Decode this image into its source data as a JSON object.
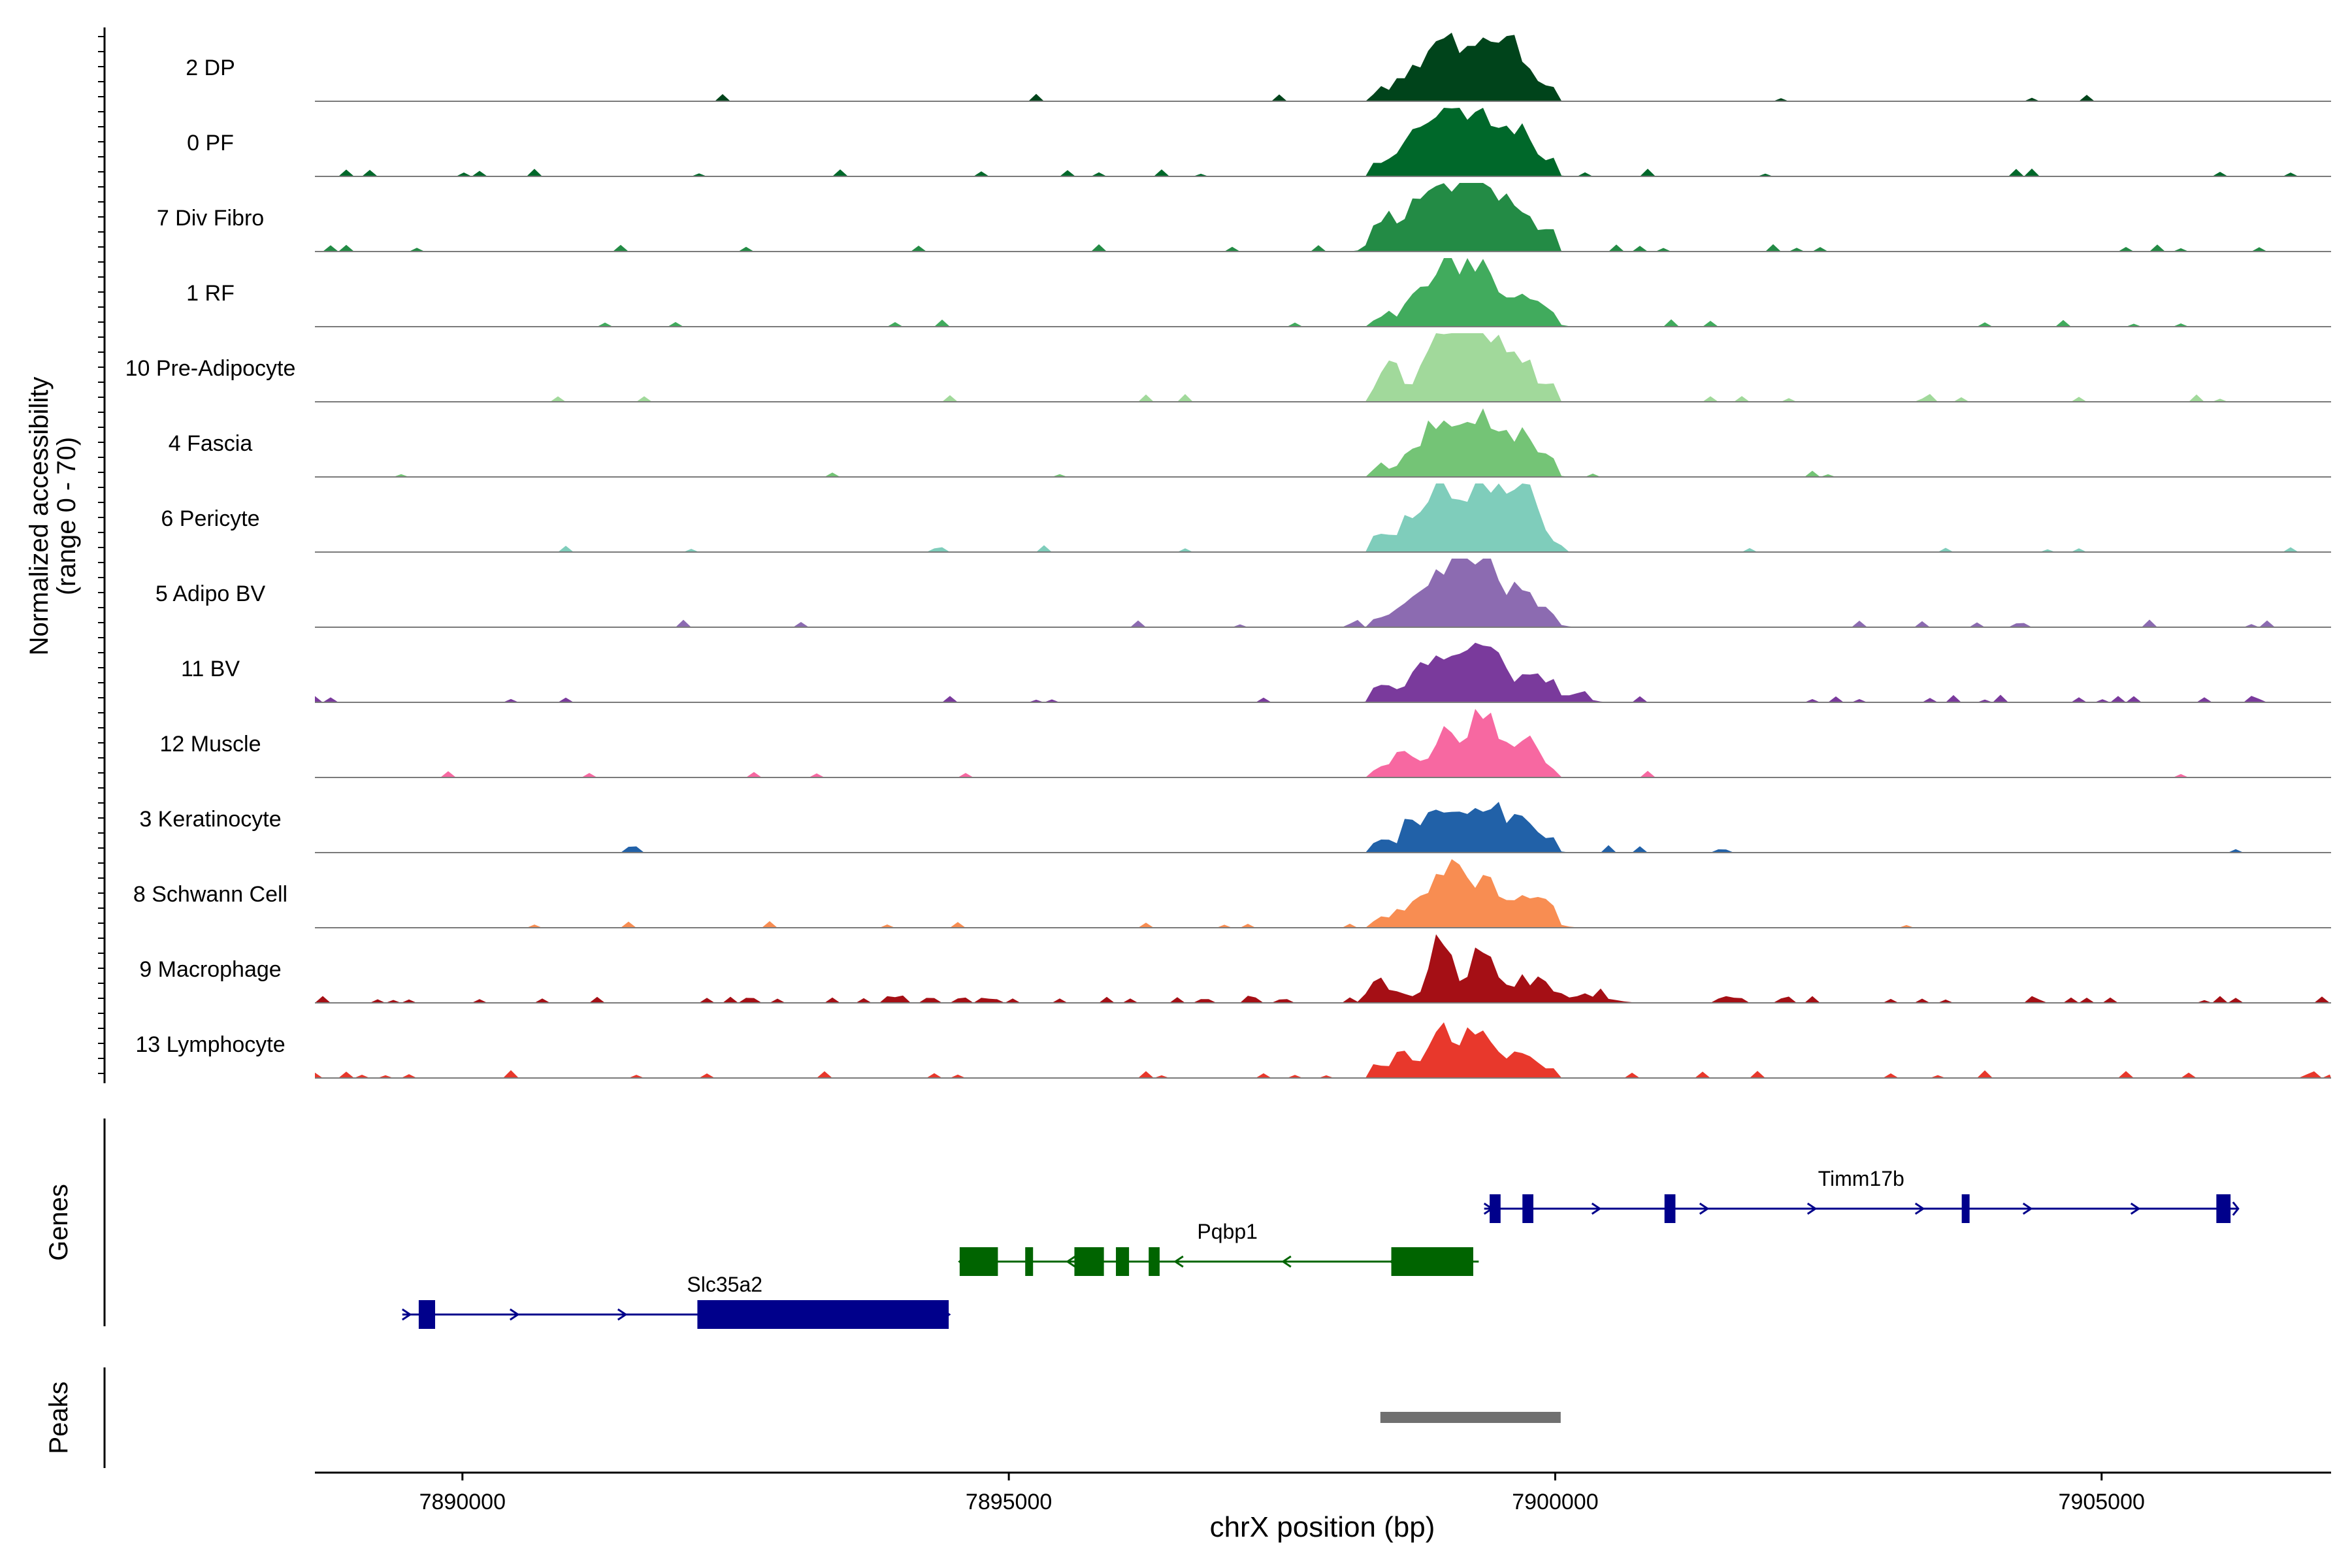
{
  "chart_data": {
    "type": "coverage-track",
    "region": {
      "chrom": "chrX",
      "start": 7888650,
      "end": 7907100
    },
    "ylabel_line1": "Normalized accessibility",
    "ylabel_line2": "(range 0 - 70)",
    "y_range": [
      0,
      70
    ],
    "tracks": [
      {
        "name": "2 DP",
        "color": "#00441b",
        "peaks": [
          {
            "pos": 7898700,
            "h": 0.25,
            "w": 120
          },
          {
            "pos": 7898950,
            "h": 0.78,
            "w": 130
          },
          {
            "pos": 7899300,
            "h": 0.88,
            "w": 160
          },
          {
            "pos": 7899650,
            "h": 0.58,
            "w": 140
          }
        ],
        "shoulder": 0.15,
        "noise": 0.03
      },
      {
        "name": "0 PF",
        "color": "#00682a",
        "peaks": [
          {
            "pos": 7898700,
            "h": 0.28,
            "w": 120
          },
          {
            "pos": 7898950,
            "h": 0.82,
            "w": 130
          },
          {
            "pos": 7899300,
            "h": 0.86,
            "w": 160
          },
          {
            "pos": 7899680,
            "h": 0.55,
            "w": 140
          }
        ],
        "shoulder": 0.17,
        "noise": 0.05
      },
      {
        "name": "7 Div Fibro",
        "color": "#238b45",
        "peaks": [
          {
            "pos": 7898400,
            "h": 0.25,
            "w": 90
          },
          {
            "pos": 7898700,
            "h": 0.42,
            "w": 120
          },
          {
            "pos": 7898950,
            "h": 0.68,
            "w": 130
          },
          {
            "pos": 7899300,
            "h": 1.0,
            "w": 150
          },
          {
            "pos": 7899650,
            "h": 0.45,
            "w": 140
          }
        ],
        "shoulder": 0.2,
        "noise": 0.1
      },
      {
        "name": "1 RF",
        "color": "#41ab5d",
        "peaks": [
          {
            "pos": 7898700,
            "h": 0.2,
            "w": 120
          },
          {
            "pos": 7898980,
            "h": 0.75,
            "w": 130
          },
          {
            "pos": 7899320,
            "h": 0.72,
            "w": 160
          },
          {
            "pos": 7899750,
            "h": 0.3,
            "w": 140
          }
        ],
        "shoulder": 0.15,
        "noise": 0.03
      },
      {
        "name": "10 Pre-Adipocyte",
        "color": "#a1d99b",
        "peaks": [
          {
            "pos": 7898500,
            "h": 0.25,
            "w": 80
          },
          {
            "pos": 7898950,
            "h": 0.9,
            "w": 110
          },
          {
            "pos": 7899300,
            "h": 1.0,
            "w": 140
          },
          {
            "pos": 7899650,
            "h": 0.35,
            "w": 140
          }
        ],
        "shoulder": 0.25,
        "noise": 0.09
      },
      {
        "name": "4 Fascia",
        "color": "#74c476",
        "peaks": [
          {
            "pos": 7898700,
            "h": 0.22,
            "w": 120
          },
          {
            "pos": 7898970,
            "h": 0.72,
            "w": 130
          },
          {
            "pos": 7899320,
            "h": 0.78,
            "w": 160
          },
          {
            "pos": 7899700,
            "h": 0.42,
            "w": 140
          }
        ],
        "shoulder": 0.15,
        "noise": 0.03
      },
      {
        "name": "6 Pericyte",
        "color": "#7fcdbb",
        "peaks": [
          {
            "pos": 7898700,
            "h": 0.3,
            "w": 110
          },
          {
            "pos": 7898970,
            "h": 0.85,
            "w": 120
          },
          {
            "pos": 7899330,
            "h": 0.92,
            "w": 150
          },
          {
            "pos": 7899700,
            "h": 0.7,
            "w": 120
          }
        ],
        "shoulder": 0.2,
        "noise": 0.06
      },
      {
        "name": "5 Adipo BV",
        "color": "#8c6bb1",
        "peaks": [
          {
            "pos": 7898750,
            "h": 0.3,
            "w": 120
          },
          {
            "pos": 7899000,
            "h": 0.6,
            "w": 130
          },
          {
            "pos": 7899300,
            "h": 0.9,
            "w": 160
          },
          {
            "pos": 7899700,
            "h": 0.38,
            "w": 160
          }
        ],
        "shoulder": 0.18,
        "noise": 0.06
      },
      {
        "name": "11 BV",
        "color": "#7a3a9c",
        "peaks": [
          {
            "pos": 7898450,
            "h": 0.12,
            "w": 90
          },
          {
            "pos": 7898750,
            "h": 0.3,
            "w": 110
          },
          {
            "pos": 7899000,
            "h": 0.62,
            "w": 120
          },
          {
            "pos": 7899350,
            "h": 0.7,
            "w": 150
          },
          {
            "pos": 7899800,
            "h": 0.3,
            "w": 140
          },
          {
            "pos": 7900200,
            "h": 0.12,
            "w": 100
          }
        ],
        "shoulder": 0.12,
        "noise": 0.1
      },
      {
        "name": "12 Muscle",
        "color": "#f768a1",
        "peaks": [
          {
            "pos": 7898600,
            "h": 0.35,
            "w": 80
          },
          {
            "pos": 7899000,
            "h": 0.55,
            "w": 110
          },
          {
            "pos": 7899350,
            "h": 1.0,
            "w": 130
          },
          {
            "pos": 7899750,
            "h": 0.45,
            "w": 110
          }
        ],
        "shoulder": 0.12,
        "noise": 0.04
      },
      {
        "name": "3 Keratinocyte",
        "color": "#2161a8",
        "peaks": [
          {
            "pos": 7898750,
            "h": 0.25,
            "w": 120
          },
          {
            "pos": 7899000,
            "h": 0.48,
            "w": 130
          },
          {
            "pos": 7899330,
            "h": 0.6,
            "w": 150
          },
          {
            "pos": 7899700,
            "h": 0.3,
            "w": 150
          }
        ],
        "shoulder": 0.15,
        "noise": 0.03
      },
      {
        "name": "8 Schwann Cell",
        "color": "#f88d52",
        "peaks": [
          {
            "pos": 7898700,
            "h": 0.25,
            "w": 120
          },
          {
            "pos": 7899000,
            "h": 0.78,
            "w": 120
          },
          {
            "pos": 7899350,
            "h": 0.55,
            "w": 160
          },
          {
            "pos": 7899750,
            "h": 0.3,
            "w": 160
          }
        ],
        "shoulder": 0.15,
        "noise": 0.04
      },
      {
        "name": "9 Macrophage",
        "color": "#a50f15",
        "peaks": [
          {
            "pos": 7898400,
            "h": 0.15,
            "w": 100
          },
          {
            "pos": 7898950,
            "h": 1.0,
            "w": 90
          },
          {
            "pos": 7899350,
            "h": 0.85,
            "w": 100
          },
          {
            "pos": 7899800,
            "h": 0.25,
            "w": 140
          },
          {
            "pos": 7900300,
            "h": 0.12,
            "w": 180
          }
        ],
        "shoulder": 0.1,
        "noise": 0.22
      },
      {
        "name": "13 Lymphocyte",
        "color": "#e8382c",
        "peaks": [
          {
            "pos": 7898600,
            "h": 0.3,
            "w": 80
          },
          {
            "pos": 7898950,
            "h": 0.55,
            "w": 110
          },
          {
            "pos": 7899300,
            "h": 0.62,
            "w": 130
          },
          {
            "pos": 7899700,
            "h": 0.3,
            "w": 120
          }
        ],
        "shoulder": 0.12,
        "noise": 0.14
      }
    ],
    "genes_label": "Genes",
    "peaks_label": "Peaks",
    "genes": [
      {
        "name": "Timm17b",
        "color": "#00008b",
        "strand": "+",
        "row": 0,
        "start": 7899350,
        "end": 7906250,
        "label_pos": 7902800,
        "exons": [
          [
            7899400,
            7899500
          ],
          [
            7899700,
            7899800
          ],
          [
            7901000,
            7901100
          ],
          [
            7903720,
            7903780
          ],
          [
            7906050,
            7906180
          ]
        ]
      },
      {
        "name": "Pqbp1",
        "color": "#006400",
        "strand": "-",
        "row": 1,
        "start": 7894550,
        "end": 7899300,
        "label_pos": 7897000,
        "exons": [
          [
            7894550,
            7894900
          ],
          [
            7895150,
            7895220
          ],
          [
            7895600,
            7895870
          ],
          [
            7895980,
            7896100
          ],
          [
            7896280,
            7896380
          ],
          [
            7898500,
            7899250
          ]
        ]
      },
      {
        "name": "Slc35a2",
        "color": "#00008b",
        "strand": "+",
        "row": 2,
        "start": 7889450,
        "end": 7894450,
        "label_pos": 7892400,
        "exons": [
          [
            7889600,
            7889750
          ],
          [
            7892150,
            7894450
          ]
        ]
      }
    ],
    "peaks": [
      {
        "start": 7898400,
        "end": 7900050,
        "color": "#707070"
      }
    ],
    "x_axis": {
      "label": "chrX position (bp)",
      "ticks": [
        7890000,
        7895000,
        7900000,
        7905000
      ],
      "tick_labels": [
        "7890000",
        "7895000",
        "7900000",
        "7905000"
      ]
    }
  }
}
